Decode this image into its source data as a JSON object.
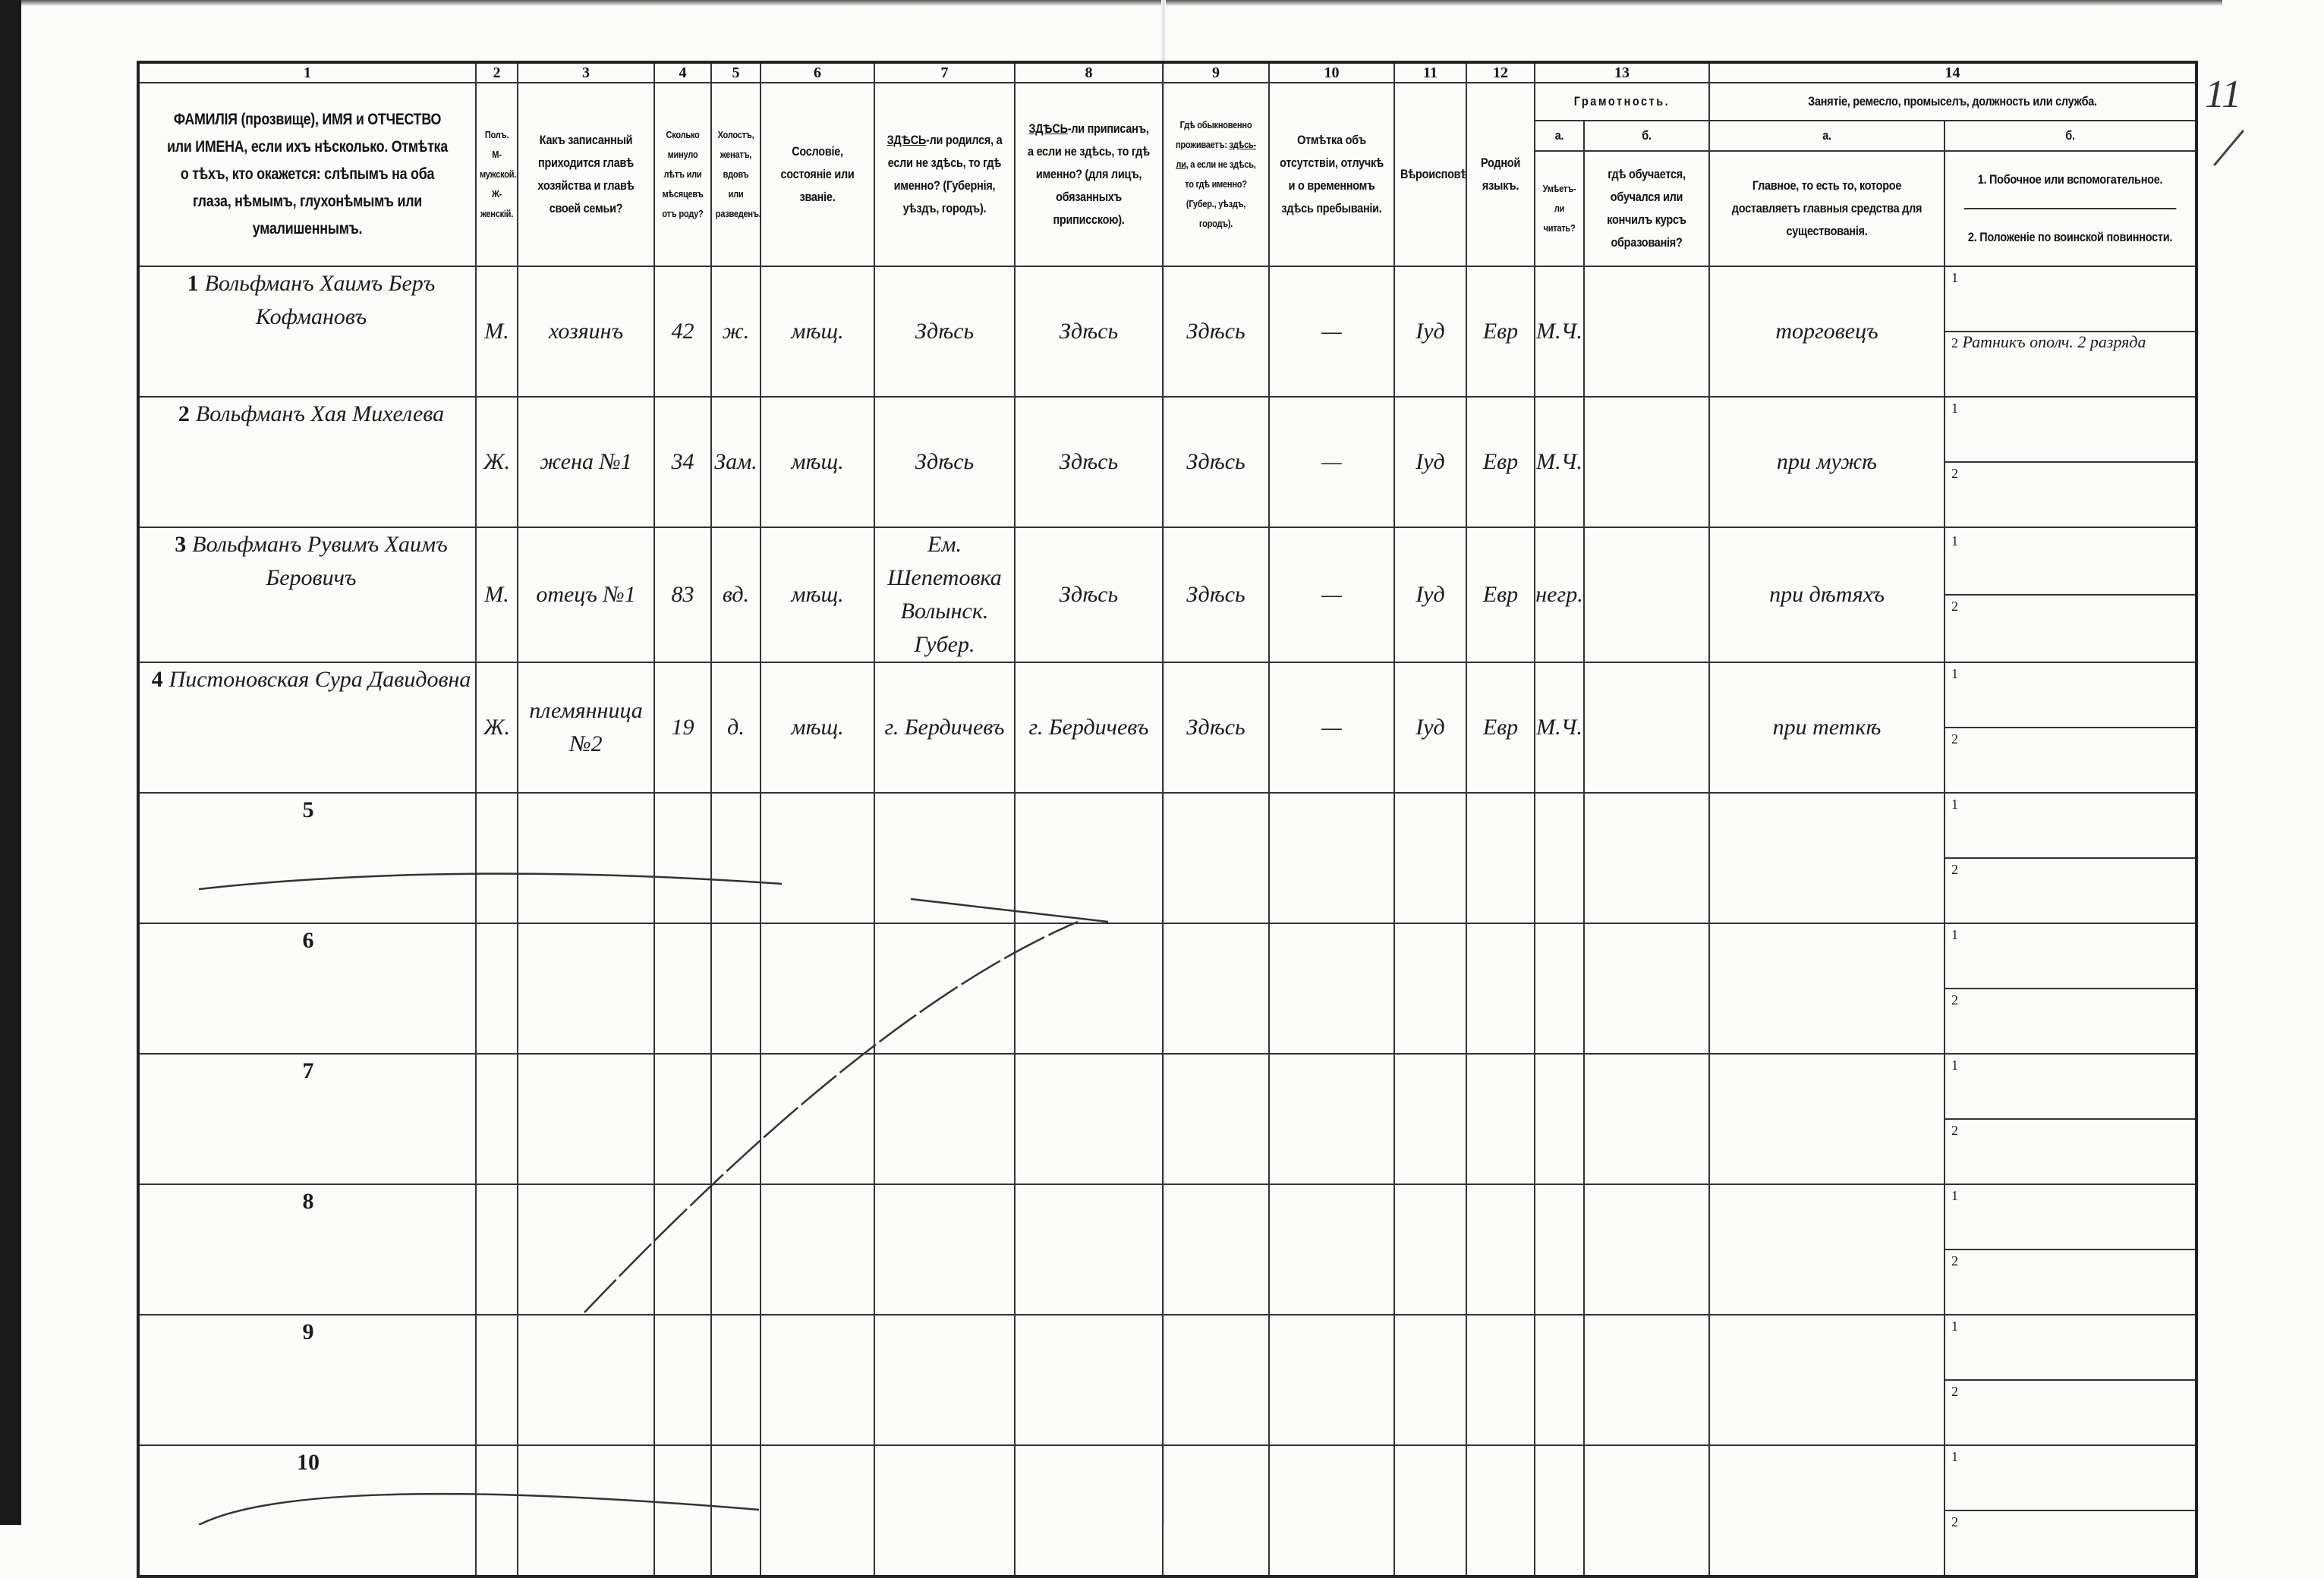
{
  "page_mark": "11",
  "columns": {
    "numbers": [
      "1",
      "2",
      "3",
      "4",
      "5",
      "6",
      "7",
      "8",
      "9",
      "10",
      "11",
      "12",
      "13",
      "14"
    ],
    "c1": "ФАМИЛІЯ (прозвище), ИМЯ и ОТЧЕСТВО или ИМЕНА, если ихъ нѣсколько. Отмѣтка о тѣхъ, кто окажется: слѣпымъ на оба глаза, нѣмымъ, глухонѣмымъ или умалишеннымъ.",
    "c2": "Полъ. М-мужской. Ж-женскій.",
    "c3": "Какъ записанный приходится главѣ хозяйства и главѣ своей семьи?",
    "c4": "Сколько минуло лѣтъ или мѣсяцевъ отъ роду?",
    "c5": "Холостъ, женатъ, вдовъ или разведенъ.",
    "c6": "Сословіе, состояніе или званіе.",
    "c7_u": "ЗДѢСЬ",
    "c7": "-ли родился, а если не здѣсь, то гдѣ именно? (Губернія, уѣздъ, городъ).",
    "c8_u": "ЗДѢСЬ",
    "c8": "-ли приписанъ, а если не здѣсь, то гдѣ именно? (для лицъ, обязанныхъ приписскою).",
    "c9_a": "Гдѣ обыкновенно проживаетъ:",
    "c9_u": "здѣсь-ли,",
    "c9_b": "а если не здѣсь, то гдѣ именно? (Губер., уѣздъ, городъ).",
    "c10": "Отмѣтка объ отсутствіи, отлучкѣ и о временномъ здѣсь пребываніи.",
    "c11": "Вѣроисповѣданіе.",
    "c12": "Родной языкъ.",
    "c13": "Грамотность.",
    "c13a": "а.",
    "c13a_text": "Умѣетъ-ли читать?",
    "c13b": "б.",
    "c13b_text": "гдѣ обучается, обучался или кончилъ курсъ образованія?",
    "c14": "Занятіе, ремесло, промыселъ, должность или служба.",
    "c14a": "а.",
    "c14a_text": "Главное, то есть то, которое доставляетъ главныя средства для существованія.",
    "c14b": "б.",
    "c14b_1": "1. Побочное или вспомогательное.",
    "c14b_2": "2. Положеніе по воинской повинности."
  },
  "rows": [
    {
      "n": "1",
      "name": "Вольфманъ Хаимъ Беръ Кофмановъ",
      "sex": "М.",
      "relation": "хозяинъ",
      "age": "42",
      "marital": "ж.",
      "estate": "мѣщ.",
      "born": "Здѣсь",
      "registered": "Здѣсь",
      "resides": "Здѣсь",
      "absence": "—",
      "religion": "Іуд",
      "language": "Евр",
      "literate": "М.Ч.",
      "school": "",
      "occupation": "торговецъ",
      "side_1": "",
      "side_2": "Ратникъ ополч. 2 разряда"
    },
    {
      "n": "2",
      "name": "Вольфманъ Хая Михелева",
      "sex": "Ж.",
      "relation": "жена №1",
      "age": "34",
      "marital": "Зам.",
      "estate": "мѣщ.",
      "born": "Здѣсь",
      "registered": "Здѣсь",
      "resides": "Здѣсь",
      "absence": "—",
      "religion": "Іуд",
      "language": "Евр",
      "literate": "М.Ч.",
      "school": "",
      "occupation": "при мужѣ",
      "side_1": "",
      "side_2": ""
    },
    {
      "n": "3",
      "name": "Вольфманъ Рувимъ Хаимъ Беровичъ",
      "sex": "М.",
      "relation": "отецъ №1",
      "age": "83",
      "marital": "вд.",
      "estate": "мѣщ.",
      "born": "Ем. Шепетовка Волынск. Губер.",
      "registered": "Здѣсь",
      "resides": "Здѣсь",
      "absence": "—",
      "religion": "Іуд",
      "language": "Евр",
      "literate": "негр.",
      "school": "",
      "occupation": "при дѣтяхъ",
      "side_1": "",
      "side_2": ""
    },
    {
      "n": "4",
      "name": "Пистоновская Сура Давидовна",
      "sex": "Ж.",
      "relation": "племянница №2",
      "age": "19",
      "marital": "д.",
      "estate": "мѣщ.",
      "born": "г. Бердичевъ",
      "registered": "г. Бердичевъ",
      "resides": "Здѣсь",
      "absence": "—",
      "religion": "Іуд",
      "language": "Евр",
      "literate": "М.Ч.",
      "school": "",
      "occupation": "при теткѣ",
      "side_1": "",
      "side_2": ""
    },
    {
      "n": "5"
    },
    {
      "n": "6"
    },
    {
      "n": "7"
    },
    {
      "n": "8"
    },
    {
      "n": "9"
    },
    {
      "n": "10"
    }
  ],
  "sub_labels": {
    "one": "1",
    "two": "2"
  }
}
